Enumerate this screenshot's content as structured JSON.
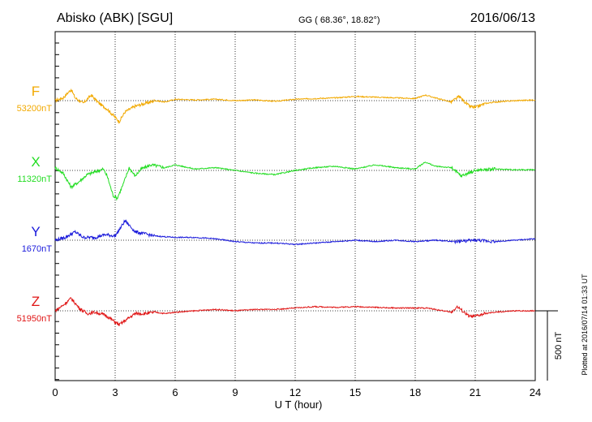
{
  "header": {
    "station": "Abisko (ABK)  [SGU]",
    "coords": "GG ( 68.36°,  18.82°)",
    "date": "2016/06/13"
  },
  "side_note": "Plotted at 2016/07/14 01:33 UT",
  "chart_data": {
    "type": "line",
    "xlabel": "U T (hour)",
    "xlim": [
      0,
      24
    ],
    "xticks": [
      "0",
      "3",
      "6",
      "9",
      "12",
      "15",
      "18",
      "21",
      "24"
    ],
    "scale_bar": {
      "label": "500 nT",
      "value_nT": 500
    },
    "series": [
      {
        "name": "F",
        "baseline_label": "53200nT",
        "baseline_nT": 53200,
        "color": "#f2a900",
        "points": [
          [
            0,
            0
          ],
          [
            0.4,
            20
          ],
          [
            0.8,
            80
          ],
          [
            1.0,
            20
          ],
          [
            1.4,
            -20
          ],
          [
            1.8,
            40
          ],
          [
            2.2,
            -20
          ],
          [
            2.6,
            -60
          ],
          [
            3.0,
            -120
          ],
          [
            3.2,
            -150
          ],
          [
            3.5,
            -80
          ],
          [
            4.0,
            -40
          ],
          [
            4.5,
            -20
          ],
          [
            5.0,
            0
          ],
          [
            5.5,
            -10
          ],
          [
            6.0,
            10
          ],
          [
            7,
            5
          ],
          [
            8,
            10
          ],
          [
            9,
            0
          ],
          [
            10,
            5
          ],
          [
            11,
            -5
          ],
          [
            12,
            10
          ],
          [
            13,
            15
          ],
          [
            14,
            20
          ],
          [
            15,
            30
          ],
          [
            16,
            25
          ],
          [
            17,
            20
          ],
          [
            18,
            15
          ],
          [
            18.5,
            40
          ],
          [
            19,
            20
          ],
          [
            19.8,
            -10
          ],
          [
            20.2,
            30
          ],
          [
            20.7,
            -40
          ],
          [
            21,
            -50
          ],
          [
            21.5,
            -20
          ],
          [
            22,
            -10
          ],
          [
            23,
            0
          ],
          [
            24,
            5
          ]
        ]
      },
      {
        "name": "X",
        "baseline_label": "11320nT",
        "baseline_nT": 11320,
        "color": "#22dd22",
        "points": [
          [
            0,
            20
          ],
          [
            0.4,
            -20
          ],
          [
            0.8,
            -120
          ],
          [
            1.2,
            -80
          ],
          [
            1.6,
            -30
          ],
          [
            2.0,
            -10
          ],
          [
            2.4,
            10
          ],
          [
            2.6,
            -40
          ],
          [
            2.9,
            -180
          ],
          [
            3.1,
            -200
          ],
          [
            3.4,
            -100
          ],
          [
            3.7,
            20
          ],
          [
            4.0,
            -40
          ],
          [
            4.3,
            10
          ],
          [
            4.8,
            40
          ],
          [
            5.5,
            20
          ],
          [
            6,
            40
          ],
          [
            7,
            10
          ],
          [
            8,
            20
          ],
          [
            9,
            0
          ],
          [
            10,
            -20
          ],
          [
            11,
            -30
          ],
          [
            12,
            0
          ],
          [
            13,
            20
          ],
          [
            14,
            30
          ],
          [
            15,
            10
          ],
          [
            16,
            40
          ],
          [
            17,
            20
          ],
          [
            18,
            10
          ],
          [
            18.5,
            60
          ],
          [
            19,
            30
          ],
          [
            19.8,
            20
          ],
          [
            20.3,
            -40
          ],
          [
            21,
            0
          ],
          [
            22,
            10
          ],
          [
            23,
            5
          ],
          [
            24,
            5
          ]
        ]
      },
      {
        "name": "Y",
        "baseline_label": "1670nT",
        "baseline_nT": 1670,
        "color": "#1a1adb",
        "points": [
          [
            0,
            0
          ],
          [
            0.5,
            20
          ],
          [
            1.0,
            60
          ],
          [
            1.4,
            20
          ],
          [
            2.0,
            20
          ],
          [
            2.5,
            40
          ],
          [
            3.0,
            30
          ],
          [
            3.5,
            140
          ],
          [
            4.0,
            60
          ],
          [
            5,
            30
          ],
          [
            6,
            20
          ],
          [
            7,
            20
          ],
          [
            8,
            10
          ],
          [
            9,
            -10
          ],
          [
            10,
            -20
          ],
          [
            11,
            -20
          ],
          [
            12,
            -30
          ],
          [
            13,
            -20
          ],
          [
            14,
            -10
          ],
          [
            15,
            0
          ],
          [
            16,
            -10
          ],
          [
            17,
            0
          ],
          [
            18,
            -10
          ],
          [
            19,
            0
          ],
          [
            20,
            -10
          ],
          [
            21,
            0
          ],
          [
            22,
            -10
          ],
          [
            23,
            0
          ],
          [
            24,
            10
          ]
        ]
      },
      {
        "name": "Z",
        "baseline_label": "51950nT",
        "baseline_nT": 51950,
        "color": "#e01515",
        "points": [
          [
            0,
            0
          ],
          [
            0.4,
            40
          ],
          [
            0.8,
            90
          ],
          [
            1.2,
            20
          ],
          [
            1.6,
            -20
          ],
          [
            2.0,
            -10
          ],
          [
            2.5,
            -30
          ],
          [
            3.0,
            -80
          ],
          [
            3.2,
            -100
          ],
          [
            3.6,
            -60
          ],
          [
            4.0,
            -20
          ],
          [
            4.5,
            -20
          ],
          [
            5.0,
            -10
          ],
          [
            5.5,
            -20
          ],
          [
            6,
            -10
          ],
          [
            7,
            0
          ],
          [
            8,
            10
          ],
          [
            9,
            0
          ],
          [
            10,
            10
          ],
          [
            11,
            10
          ],
          [
            12,
            20
          ],
          [
            13,
            30
          ],
          [
            14,
            25
          ],
          [
            15,
            30
          ],
          [
            16,
            25
          ],
          [
            17,
            20
          ],
          [
            18,
            20
          ],
          [
            18.6,
            20
          ],
          [
            19.8,
            -10
          ],
          [
            20.1,
            30
          ],
          [
            20.7,
            -40
          ],
          [
            21,
            -40
          ],
          [
            21.5,
            -20
          ],
          [
            22,
            -10
          ],
          [
            23,
            0
          ],
          [
            24,
            0
          ]
        ]
      }
    ]
  }
}
